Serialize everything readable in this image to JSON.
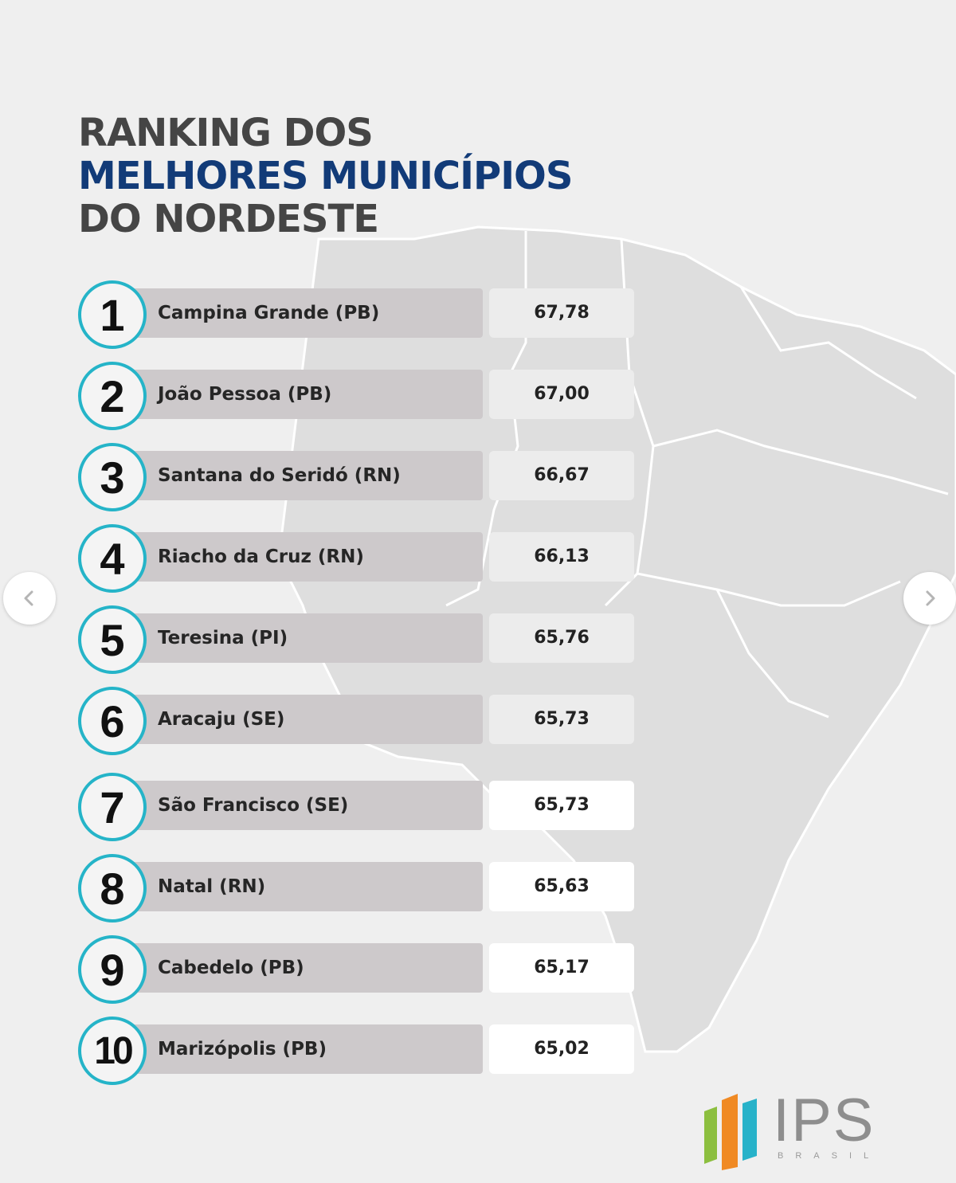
{
  "title": {
    "line1": "RANKING DOS",
    "line2": "MELHORES MUNICÍPIOS",
    "line3": "DO NORDESTE"
  },
  "ranking": [
    {
      "rank": "1",
      "name": "Campina Grande (PB)",
      "score": "67,78"
    },
    {
      "rank": "2",
      "name": "João Pessoa (PB)",
      "score": "67,00"
    },
    {
      "rank": "3",
      "name": "Santana do Seridó (RN)",
      "score": "66,67"
    },
    {
      "rank": "4",
      "name": "Riacho da Cruz (RN)",
      "score": "66,13"
    },
    {
      "rank": "5",
      "name": "Teresina (PI)",
      "score": "65,76"
    },
    {
      "rank": "6",
      "name": "Aracaju (SE)",
      "score": "65,73"
    },
    {
      "rank": "7",
      "name": "São Francisco (SE)",
      "score": "65,73"
    },
    {
      "rank": "8",
      "name": "Natal (RN)",
      "score": "65,63"
    },
    {
      "rank": "9",
      "name": "Cabedelo (PB)",
      "score": "65,17"
    },
    {
      "rank": "10",
      "name": "Marizópolis (PB)",
      "score": "65,02"
    }
  ],
  "logo": {
    "name": "IPS",
    "subtitle": "BRASIL"
  },
  "colors": {
    "title_dark": "#454545",
    "title_blue": "#123b78",
    "circle_ring": "#25b4c8",
    "name_bar": "#cdc9cb",
    "background": "#efefef"
  },
  "icons": {
    "prev": "chevron-left-icon",
    "next": "chevron-right-icon"
  }
}
